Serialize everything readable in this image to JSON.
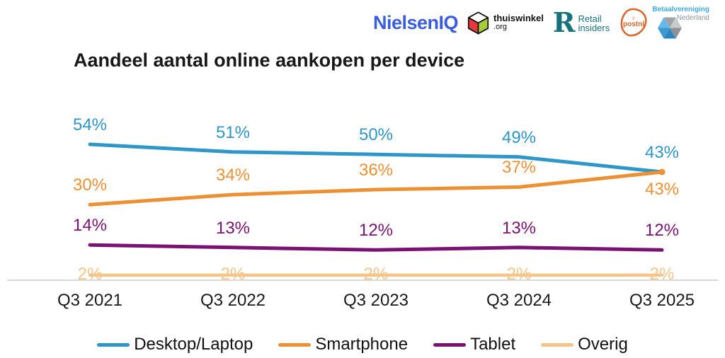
{
  "title": "Aandeel aantal online aankopen per device",
  "header": {
    "logos": {
      "nielseniq": {
        "text": "NielsenIQ",
        "color": "#3A5CE0"
      },
      "thuiswinkel": {
        "name": "thuiswinkel",
        "suffix": ".org",
        "cube_red": "#E8373E",
        "cube_green": "#A5CD39",
        "cube_top": "#FFFFFF",
        "outline": "#111111"
      },
      "retail_insiders": {
        "monogram": "R",
        "line1": "Retail",
        "line2": "insiders",
        "color": "#16727C"
      },
      "postnl": {
        "text": "postnl",
        "crown": "♕",
        "color": "#DD6327"
      },
      "betaalvereniging": {
        "line1": "Betaalvereniging",
        "line2": "Nederland",
        "blue": "#3FAADF",
        "gray": "#8D9399"
      }
    }
  },
  "chart_data": {
    "type": "line",
    "title": "Aandeel aantal online aankopen per device",
    "categories": [
      "Q3 2021",
      "Q3 2022",
      "Q3 2023",
      "Q3 2024",
      "Q3 2025"
    ],
    "series": [
      {
        "name": "Desktop/Laptop",
        "color": "#2E96C8",
        "values": [
          54,
          51,
          50,
          49,
          43
        ]
      },
      {
        "name": "Smartphone",
        "color": "#ED9033",
        "values": [
          30,
          34,
          36,
          37,
          43
        ]
      },
      {
        "name": "Tablet",
        "color": "#7A1274",
        "values": [
          14,
          13,
          12,
          13,
          12
        ]
      },
      {
        "name": "Overig",
        "color": "#F5C488",
        "values": [
          2,
          2,
          2,
          2,
          2
        ]
      }
    ],
    "value_suffix": "%",
    "xlabel": "",
    "ylabel": "",
    "ylim": [
      0,
      60
    ],
    "grid": false,
    "axis_line_color": "#D9D9D9",
    "legend_position": "bottom",
    "data_labels": true
  }
}
